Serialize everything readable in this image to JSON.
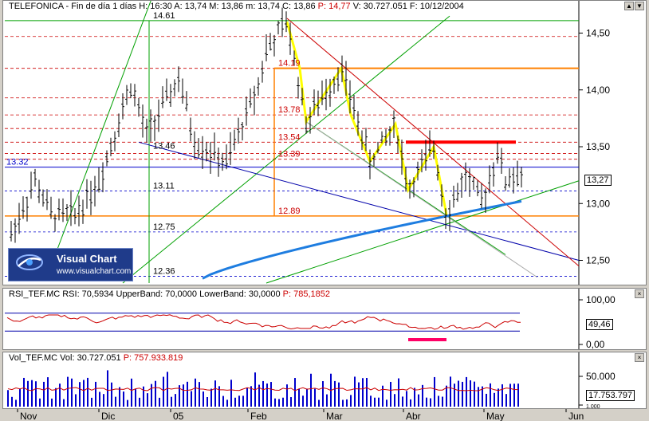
{
  "price_pane": {
    "header": "TELEFONICA - Fin de día 1 días H: 16:30 A: 13,74 M: 13,86 m: 13,74 C: 13,86",
    "header_p": "P: 14,77",
    "header_tail": "V: 30.727.051 F: 10/12/2004",
    "last_value": "13,27",
    "y_ticks": [
      "14,50",
      "14,00",
      "13,50",
      "13,00",
      "12,50"
    ],
    "level_labels": [
      "14.61",
      "14.19",
      "13.78",
      "13.54",
      "13.39",
      "13.46",
      "13.32",
      "13.11",
      "12.89",
      "12.75",
      "12.36"
    ]
  },
  "rsi_pane": {
    "header": "RSI_TEF.MC RSI: 70,5934 UpperBand: 70,0000 LowerBand: 30,0000",
    "header_p": "P: 785,1852",
    "last_value": "49,46",
    "y_ticks": [
      "100,00",
      "0,00"
    ]
  },
  "vol_pane": {
    "header": "Vol_TEF.MC Vol: 30.727.051",
    "header_p": "P: 757.933.819",
    "last_value": "17.753.797",
    "y_ticks": [
      "50.000",
      "1.000"
    ]
  },
  "x_axis": [
    "Nov",
    "Dic",
    "05",
    "Feb",
    "Mar",
    "Abr",
    "May",
    "Jun"
  ],
  "logo": {
    "title": "Visual Chart",
    "url": "www.visualchart.com"
  },
  "scroll_buttons": [
    "▲",
    "▼"
  ],
  "colors": {
    "candles": "#000000",
    "blue_ma": "#1e7de0",
    "yellow": "#ffff00",
    "red_resistance": "#ff0000",
    "orange": "#ff8000",
    "green_lines": "#00b000",
    "pink_rsi_mark": "#ff0066"
  },
  "chart_data": {
    "type": "ohlc",
    "title": "TELEFONICA",
    "ylim": [
      12.3,
      14.7
    ],
    "levels": [
      14.61,
      14.19,
      13.78,
      13.54,
      13.39,
      13.46,
      13.32,
      13.11,
      12.89,
      12.75,
      12.36
    ],
    "rsi": {
      "upper": 70,
      "lower": 30,
      "last": 49.46
    },
    "volume": {
      "last": 17753797,
      "ticks": [
        50000,
        1000
      ]
    }
  }
}
